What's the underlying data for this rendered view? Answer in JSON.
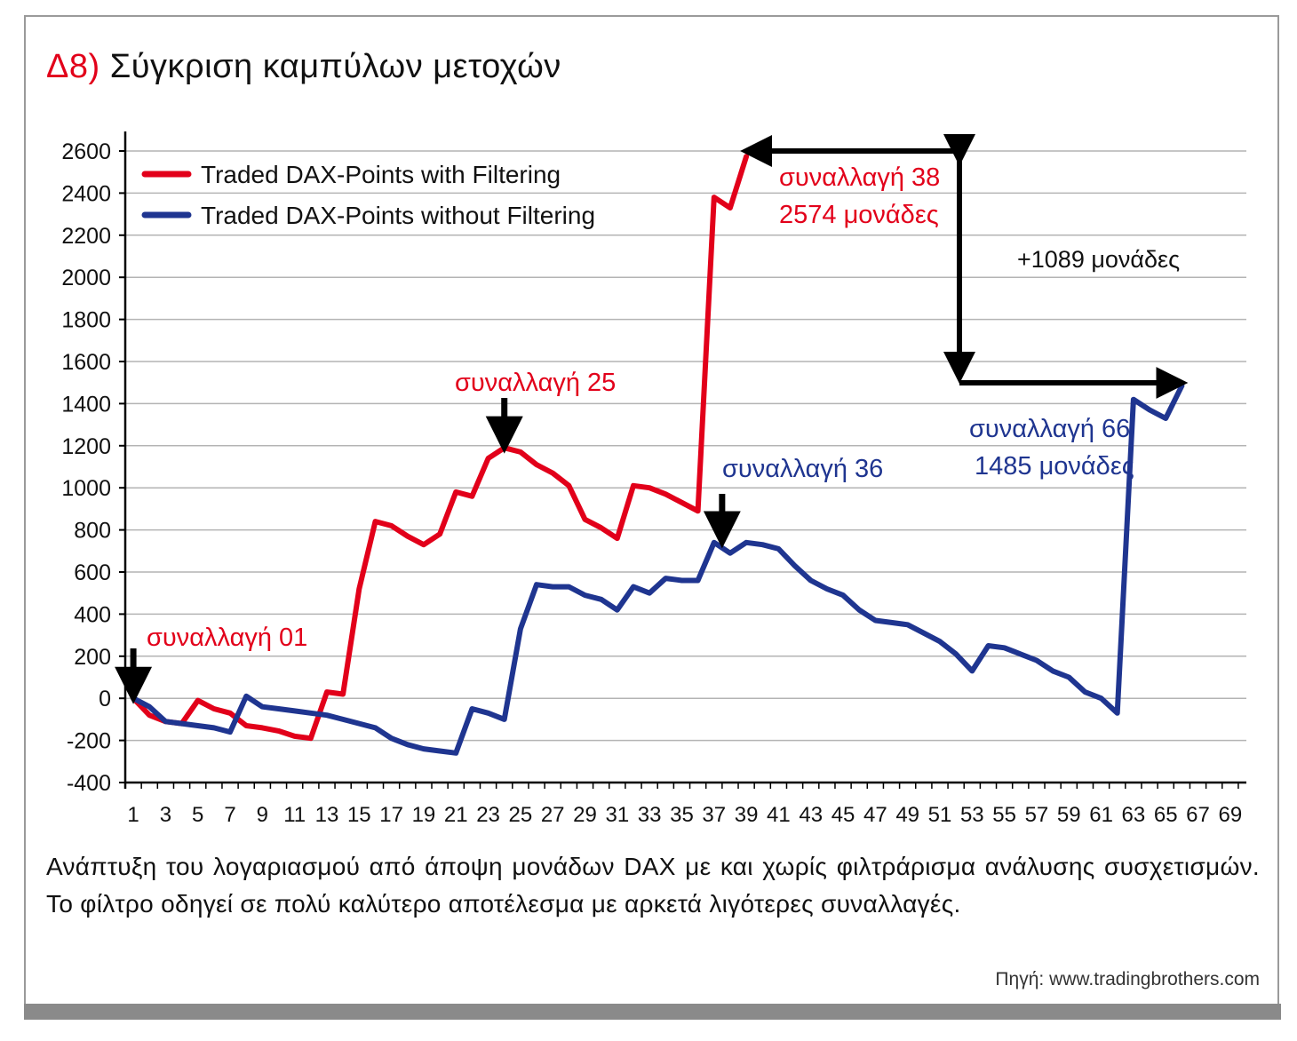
{
  "header": {
    "title_prefix": "Δ8)",
    "title_text": "Σύγκριση καμπύλων μετοχών"
  },
  "caption": "Ανάπτυξη του λογαριασμού από άποψη μονάδων DAX με και χωρίς φιλτράρισμα ανάλυσης συσχετισμών. Το φίλτρο οδηγεί σε πολύ καλύτερο αποτέλεσμα με αρκετά λιγότερες συναλλαγές.",
  "source": "Πηγή: www.tradingbrothers.com",
  "colors": {
    "red": "#e2001a",
    "blue": "#1f3590",
    "grid": "#b4b4b4"
  },
  "chart_data": {
    "type": "line",
    "title": "",
    "xlabel": "",
    "ylabel": "",
    "xlim": [
      0.5,
      70
    ],
    "ylim": [
      -400,
      2600
    ],
    "yticks": [
      -400,
      -200,
      0,
      200,
      400,
      600,
      800,
      1000,
      1200,
      1400,
      1600,
      1800,
      2000,
      2200,
      2400,
      2600
    ],
    "xticks": [
      1,
      3,
      5,
      7,
      9,
      11,
      13,
      15,
      17,
      19,
      21,
      23,
      25,
      27,
      29,
      31,
      33,
      35,
      37,
      39,
      41,
      43,
      45,
      47,
      49,
      51,
      53,
      55,
      57,
      59,
      61,
      63,
      65,
      67,
      69
    ],
    "grid": "horizontal",
    "legend_position": "top-left",
    "series": [
      {
        "name": "Traded DAX-Points with Filtering",
        "color": "#e2001a",
        "x": [
          1,
          2,
          3,
          4,
          5,
          6,
          7,
          8,
          9,
          10,
          11,
          12,
          13,
          14,
          15,
          16,
          17,
          18,
          19,
          20,
          21,
          22,
          23,
          24,
          25,
          26,
          27,
          28,
          29,
          30,
          31,
          32,
          33,
          34,
          35,
          36,
          37,
          38,
          39
        ],
        "y": [
          0,
          -80,
          -110,
          -120,
          -10,
          -50,
          -70,
          -130,
          -140,
          -155,
          -180,
          -190,
          30,
          20,
          520,
          840,
          820,
          770,
          730,
          780,
          980,
          960,
          1140,
          1190,
          1170,
          1110,
          1070,
          1010,
          850,
          810,
          760,
          1010,
          1000,
          970,
          930,
          890,
          2380,
          2330,
          2574
        ]
      },
      {
        "name": "Traded DAX-Points without Filtering",
        "color": "#1f3590",
        "x": [
          1,
          2,
          3,
          4,
          5,
          6,
          7,
          8,
          9,
          10,
          11,
          12,
          13,
          14,
          15,
          16,
          17,
          18,
          19,
          20,
          21,
          22,
          23,
          24,
          25,
          26,
          27,
          28,
          29,
          30,
          31,
          32,
          33,
          34,
          35,
          36,
          37,
          38,
          39,
          40,
          41,
          42,
          43,
          44,
          45,
          46,
          47,
          48,
          49,
          50,
          51,
          52,
          53,
          54,
          55,
          56,
          57,
          58,
          59,
          60,
          61,
          62,
          63,
          64,
          65,
          66
        ],
        "y": [
          0,
          -40,
          -110,
          -120,
          -130,
          -140,
          -160,
          10,
          -40,
          -50,
          -60,
          -70,
          -80,
          -100,
          -120,
          -140,
          -190,
          -220,
          -240,
          -250,
          -260,
          -50,
          -70,
          -100,
          330,
          540,
          530,
          530,
          490,
          470,
          420,
          530,
          500,
          570,
          560,
          560,
          740,
          690,
          740,
          730,
          710,
          630,
          560,
          520,
          490,
          420,
          370,
          360,
          350,
          310,
          270,
          210,
          130,
          250,
          240,
          210,
          180,
          130,
          100,
          30,
          0,
          -70,
          1420,
          1370,
          1330,
          1485
        ]
      }
    ],
    "annotations": [
      {
        "text": "συναλλαγή 01",
        "color": "#e2001a"
      },
      {
        "text": "συναλλαγή 25",
        "color": "#e2001a"
      },
      {
        "text": "συναλλαγή 38",
        "color": "#e2001a"
      },
      {
        "text": "2574 μονάδες",
        "color": "#e2001a"
      },
      {
        "text": "συναλλαγή 36",
        "color": "#1f3590"
      },
      {
        "text": "συναλλαγή 66",
        "color": "#1f3590"
      },
      {
        "text": "1485 μονάδες",
        "color": "#1f3590"
      },
      {
        "text": "+1089 μονάδες",
        "color": "#111111"
      }
    ]
  }
}
